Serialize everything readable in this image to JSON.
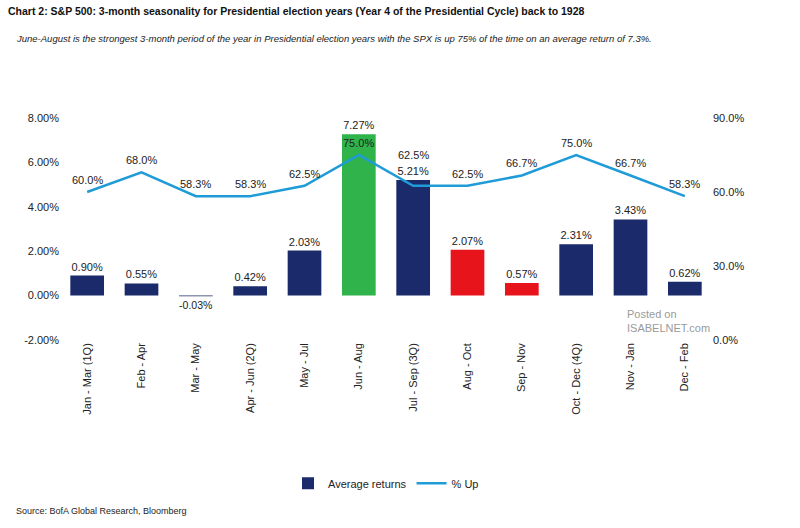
{
  "chart_data": {
    "type": "bar",
    "title": "Chart 2: S&P 500: 3-month seasonality for Presidential election years (Year 4 of the Presidential Cycle) back to 1928",
    "subtitle": "June-August is the strongest 3-month period of the year in Presidential election years with the SPX is up 75% of the time on an average return of 7.3%.",
    "source": "Source: BofA Global Research, Bloomberg",
    "watermark": [
      "Posted on",
      "ISABELNET.com"
    ],
    "categories": [
      "Jan - Mar (1Q)",
      "Feb - Apr",
      "Mar - May",
      "Apr - Jun (2Q)",
      "May - Jul",
      "Jun - Aug",
      "Jul - Sep (3Q)",
      "Aug - Oct",
      "Sep - Nov",
      "Oct - Dec (4Q)",
      "Nov - Jan",
      "Dec - Feb"
    ],
    "series": [
      {
        "name": "Average returns",
        "type": "bar",
        "colors": [
          "#1b2a6b",
          "#1b2a6b",
          "#1b2a6b",
          "#1b2a6b",
          "#1b2a6b",
          "#2fb34a",
          "#1b2a6b",
          "#e8141c",
          "#e8141c",
          "#1b2a6b",
          "#1b2a6b",
          "#1b2a6b"
        ],
        "values": [
          0.9,
          0.55,
          -0.03,
          0.42,
          2.03,
          7.27,
          5.21,
          2.07,
          0.57,
          2.31,
          3.43,
          0.62
        ],
        "value_labels": [
          "0.90%",
          "0.55%",
          "-0.03%",
          "0.42%",
          "2.03%",
          "7.27%",
          "5.21%",
          "2.07%",
          "0.57%",
          "2.31%",
          "3.43%",
          "0.62%"
        ]
      },
      {
        "name": "% Up",
        "type": "line",
        "axis": "y2",
        "color": "#1f9bd7",
        "values": [
          60.0,
          68.0,
          58.3,
          58.3,
          62.5,
          75.0,
          62.5,
          62.5,
          66.7,
          75.0,
          66.7,
          58.3
        ],
        "value_labels": [
          "60.0%",
          "68.0%",
          "58.3%",
          "58.3%",
          "62.5%",
          "75.0%",
          "62.5%",
          "62.5%",
          "66.7%",
          "75.0%",
          "66.7%",
          "58.3%"
        ]
      }
    ],
    "ylim": [
      -2,
      8
    ],
    "yticks": [
      {
        "value": -2,
        "label": "-2.00%"
      },
      {
        "value": 0,
        "label": "0.00%"
      },
      {
        "value": 2,
        "label": "2.00%"
      },
      {
        "value": 4,
        "label": "4.00%"
      },
      {
        "value": 6,
        "label": "6.00%"
      },
      {
        "value": 8,
        "label": "8.00%"
      }
    ],
    "y2lim": [
      0,
      90
    ],
    "y2ticks": [
      {
        "value": 0,
        "label": "0.0%"
      },
      {
        "value": 30,
        "label": "30.0%"
      },
      {
        "value": 60,
        "label": "60.0%"
      },
      {
        "value": 90,
        "label": "90.0%"
      }
    ],
    "grid": false,
    "legend": "bottom",
    "data_labels": true
  }
}
